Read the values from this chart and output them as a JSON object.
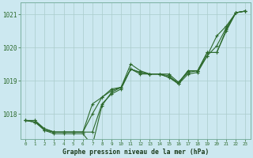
{
  "x": [
    0,
    1,
    2,
    3,
    4,
    5,
    6,
    7,
    8,
    9,
    10,
    11,
    12,
    13,
    14,
    15,
    16,
    17,
    18,
    19,
    20,
    21,
    22,
    23
  ],
  "series1": [
    1017.8,
    1017.8,
    1017.55,
    1017.45,
    1017.45,
    1017.45,
    1017.45,
    1017.45,
    1018.3,
    1018.6,
    1018.75,
    1019.35,
    1019.25,
    1019.2,
    1019.2,
    1019.2,
    1018.95,
    1019.25,
    1019.3,
    1019.85,
    1019.85,
    1020.55,
    1021.05,
    1021.1
  ],
  "series2": [
    1017.8,
    1017.75,
    1017.55,
    1017.45,
    1017.45,
    1017.45,
    1017.45,
    1018.0,
    1018.5,
    1018.75,
    1018.8,
    1019.35,
    1019.2,
    1019.2,
    1019.2,
    1019.1,
    1018.9,
    1019.2,
    1019.25,
    1019.75,
    1020.05,
    1020.6,
    1021.05,
    1021.1
  ],
  "series3": [
    1017.8,
    1017.75,
    1017.5,
    1017.4,
    1017.4,
    1017.4,
    1017.4,
    1017.05,
    1018.25,
    1018.65,
    1018.8,
    1019.5,
    1019.3,
    1019.2,
    1019.2,
    1019.1,
    1018.95,
    1019.3,
    1019.3,
    1019.75,
    1020.35,
    1020.65,
    1021.05,
    1021.1
  ],
  "series4": [
    1017.8,
    1017.8,
    1017.5,
    1017.45,
    1017.45,
    1017.45,
    1017.45,
    1018.3,
    1018.5,
    1018.7,
    1018.8,
    1019.35,
    1019.25,
    1019.2,
    1019.2,
    1019.15,
    1018.9,
    1019.3,
    1019.3,
    1019.85,
    1019.85,
    1020.5,
    1021.05,
    1021.1
  ],
  "line_color": "#2d6a2d",
  "bg_color": "#cce8f0",
  "grid_color": "#aacccc",
  "xlabel": "Graphe pression niveau de la mer (hPa)",
  "ylim_min": 1017.25,
  "ylim_max": 1021.35,
  "yticks": [
    1018,
    1019,
    1020,
    1021
  ],
  "xticks": [
    0,
    1,
    2,
    3,
    4,
    5,
    6,
    7,
    8,
    9,
    10,
    11,
    12,
    13,
    14,
    15,
    16,
    17,
    18,
    19,
    20,
    21,
    22,
    23
  ]
}
